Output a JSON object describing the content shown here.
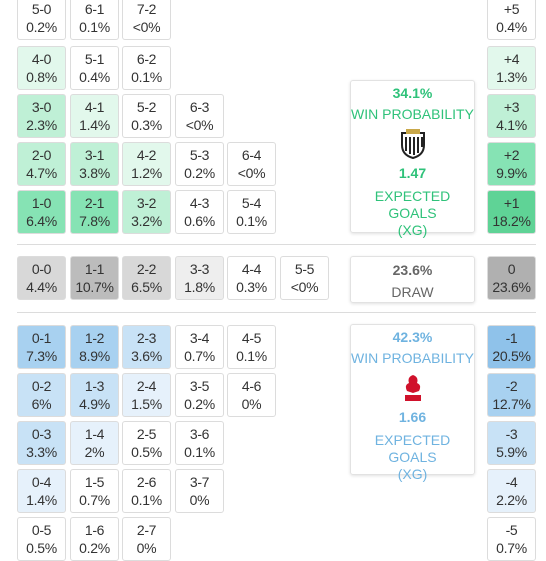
{
  "home": {
    "rows": [
      {
        "cells": [
          {
            "score": "5-0",
            "pct": "0.2%"
          },
          {
            "score": "6-1",
            "pct": "0.1%"
          },
          {
            "score": "7-2",
            "pct": "<0%"
          }
        ],
        "diff": {
          "label": "+5",
          "pct": "0.4%"
        }
      },
      {
        "cells": [
          {
            "score": "4-0",
            "pct": "0.8%"
          },
          {
            "score": "5-1",
            "pct": "0.4%"
          },
          {
            "score": "6-2",
            "pct": "0.1%"
          }
        ],
        "diff": {
          "label": "+4",
          "pct": "1.3%"
        }
      },
      {
        "cells": [
          {
            "score": "3-0",
            "pct": "2.3%"
          },
          {
            "score": "4-1",
            "pct": "1.4%"
          },
          {
            "score": "5-2",
            "pct": "0.3%"
          },
          {
            "score": "6-3",
            "pct": "<0%"
          }
        ],
        "diff": {
          "label": "+3",
          "pct": "4.1%"
        }
      },
      {
        "cells": [
          {
            "score": "2-0",
            "pct": "4.7%"
          },
          {
            "score": "3-1",
            "pct": "3.8%"
          },
          {
            "score": "4-2",
            "pct": "1.2%"
          },
          {
            "score": "5-3",
            "pct": "0.2%"
          },
          {
            "score": "6-4",
            "pct": "<0%"
          }
        ],
        "diff": {
          "label": "+2",
          "pct": "9.9%"
        }
      },
      {
        "cells": [
          {
            "score": "1-0",
            "pct": "6.4%"
          },
          {
            "score": "2-1",
            "pct": "7.8%"
          },
          {
            "score": "3-2",
            "pct": "3.2%"
          },
          {
            "score": "4-3",
            "pct": "0.6%"
          },
          {
            "score": "5-4",
            "pct": "0.1%"
          }
        ],
        "diff": {
          "label": "+1",
          "pct": "18.2%"
        }
      }
    ],
    "card": {
      "probability": "34.1%",
      "label": "WIN PROBABILITY",
      "xg": "1.47",
      "xg_label": "EXPECTED GOALS",
      "xg_abbr": "(XG)"
    }
  },
  "draw": {
    "rows": [
      {
        "cells": [
          {
            "score": "0-0",
            "pct": "4.4%"
          },
          {
            "score": "1-1",
            "pct": "10.7%"
          },
          {
            "score": "2-2",
            "pct": "6.5%"
          },
          {
            "score": "3-3",
            "pct": "1.8%"
          },
          {
            "score": "4-4",
            "pct": "0.3%"
          },
          {
            "score": "5-5",
            "pct": "<0%"
          }
        ],
        "diff": {
          "label": "0",
          "pct": "23.6%"
        }
      }
    ],
    "card": {
      "probability": "23.6%",
      "label": "DRAW"
    }
  },
  "away": {
    "rows": [
      {
        "cells": [
          {
            "score": "0-1",
            "pct": "7.3%"
          },
          {
            "score": "1-2",
            "pct": "8.9%"
          },
          {
            "score": "2-3",
            "pct": "3.6%"
          },
          {
            "score": "3-4",
            "pct": "0.7%"
          },
          {
            "score": "4-5",
            "pct": "0.1%"
          }
        ],
        "diff": {
          "label": "-1",
          "pct": "20.5%"
        }
      },
      {
        "cells": [
          {
            "score": "0-2",
            "pct": "6%"
          },
          {
            "score": "1-3",
            "pct": "4.9%"
          },
          {
            "score": "2-4",
            "pct": "1.5%"
          },
          {
            "score": "3-5",
            "pct": "0.2%"
          },
          {
            "score": "4-6",
            "pct": "0%"
          }
        ],
        "diff": {
          "label": "-2",
          "pct": "12.7%"
        }
      },
      {
        "cells": [
          {
            "score": "0-3",
            "pct": "3.3%"
          },
          {
            "score": "1-4",
            "pct": "2%"
          },
          {
            "score": "2-5",
            "pct": "0.5%"
          },
          {
            "score": "3-6",
            "pct": "0.1%"
          }
        ],
        "diff": {
          "label": "-3",
          "pct": "5.9%"
        }
      },
      {
        "cells": [
          {
            "score": "0-4",
            "pct": "1.4%"
          },
          {
            "score": "1-5",
            "pct": "0.7%"
          },
          {
            "score": "2-6",
            "pct": "0.1%"
          },
          {
            "score": "3-7",
            "pct": "0%"
          }
        ],
        "diff": {
          "label": "-4",
          "pct": "2.2%"
        }
      },
      {
        "cells": [
          {
            "score": "0-5",
            "pct": "0.5%"
          },
          {
            "score": "1-6",
            "pct": "0.2%"
          },
          {
            "score": "2-7",
            "pct": "0%"
          }
        ],
        "diff": {
          "label": "-5",
          "pct": "0.7%"
        }
      }
    ],
    "card": {
      "probability": "42.3%",
      "label": "WIN PROBABILITY",
      "xg": "1.66",
      "xg_label": "EXPECTED GOALS",
      "xg_abbr": "(XG)"
    }
  }
}
